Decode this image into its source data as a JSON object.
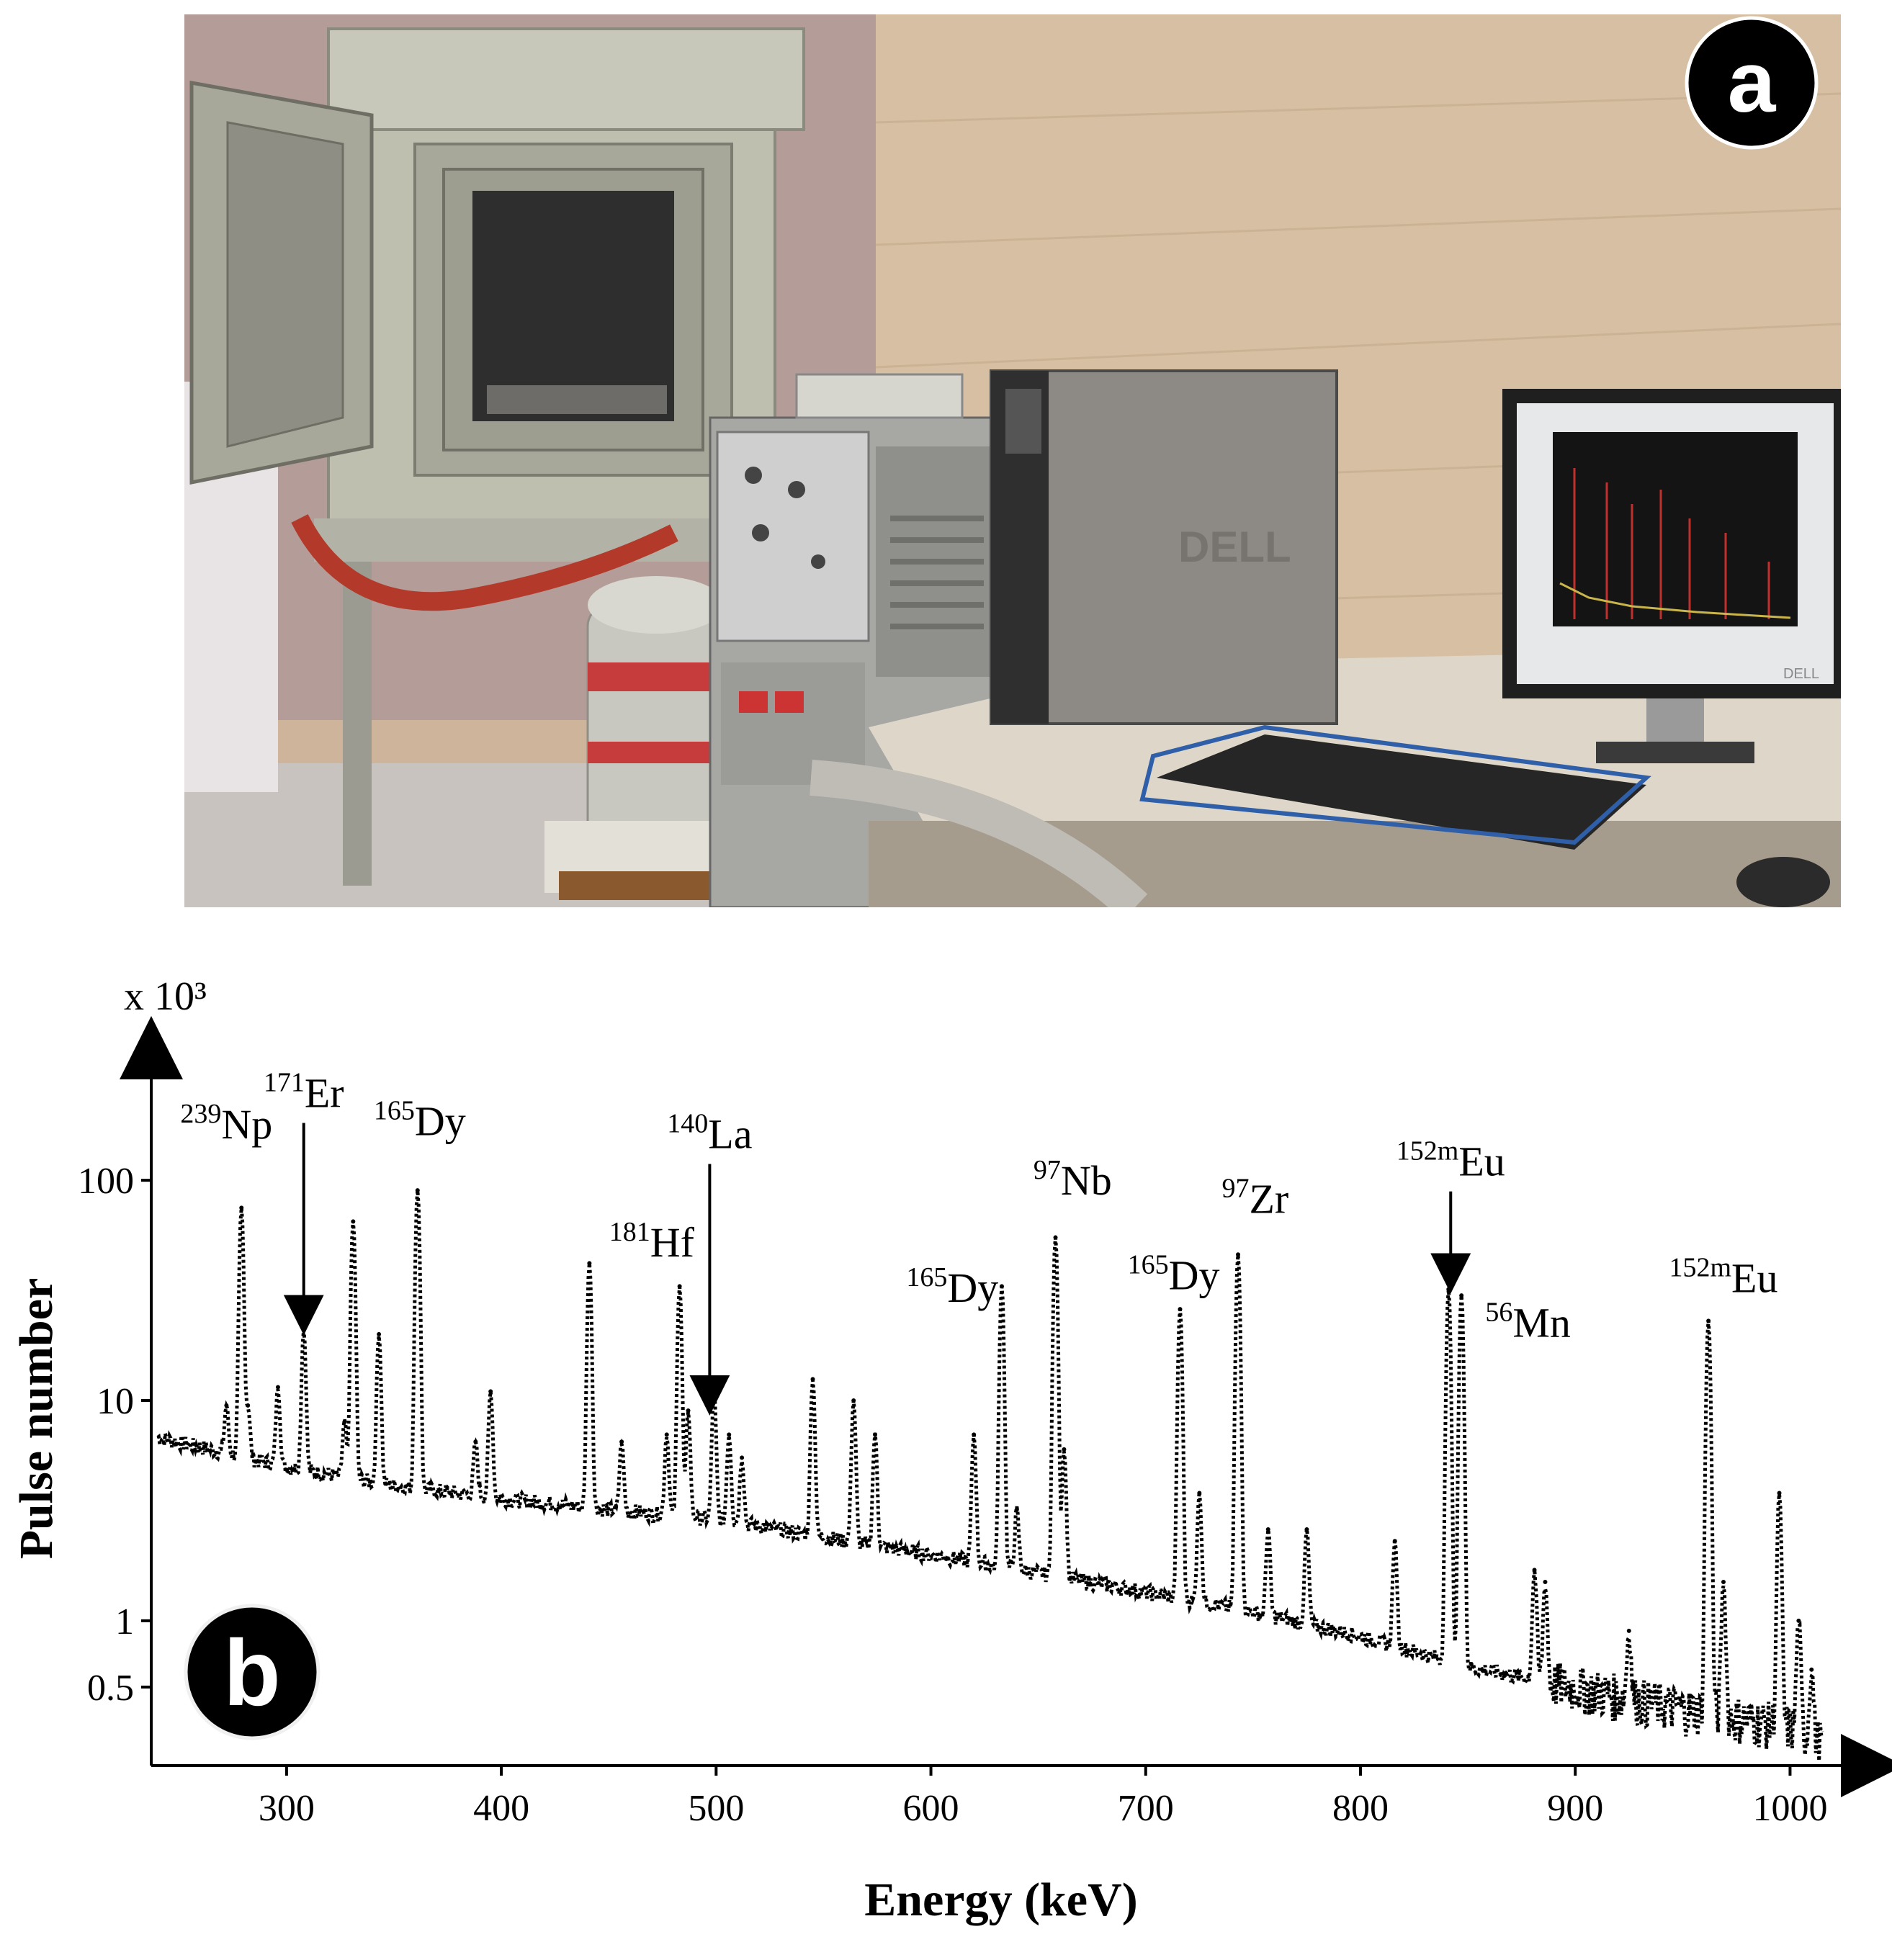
{
  "panel_a": {
    "badge": "a",
    "monitor_brand": "DELL",
    "computer_brand": "DELL"
  },
  "panel_b": {
    "badge": "b"
  },
  "chart_data": {
    "type": "line",
    "scale_note": "x 10³",
    "xlabel": "Energy (keV)",
    "ylabel": "Pulse number",
    "x_ticks": [
      300,
      400,
      500,
      600,
      700,
      800,
      900,
      1000
    ],
    "y_ticks": [
      {
        "value": 100,
        "label": "100"
      },
      {
        "value": 10,
        "label": "10"
      },
      {
        "value": 1,
        "label": "1"
      },
      {
        "value": 0.5,
        "label": "0.5"
      }
    ],
    "xlim": [
      237,
      1025
    ],
    "ylim": [
      0.22,
      400
    ],
    "y_scale": "log",
    "baseline": [
      [
        240,
        6.8
      ],
      [
        300,
        5.0
      ],
      [
        350,
        4.1
      ],
      [
        400,
        3.6
      ],
      [
        450,
        3.2
      ],
      [
        500,
        2.9
      ],
      [
        550,
        2.4
      ],
      [
        600,
        2.0
      ],
      [
        650,
        1.65
      ],
      [
        700,
        1.35
      ],
      [
        750,
        1.1
      ],
      [
        800,
        0.85
      ],
      [
        850,
        0.62
      ],
      [
        900,
        0.5
      ],
      [
        950,
        0.4
      ],
      [
        1000,
        0.33
      ],
      [
        1015,
        0.28
      ]
    ],
    "peaks": [
      {
        "x": 272,
        "y": 9.5
      },
      {
        "x": 279,
        "y": 75
      },
      {
        "x": 282,
        "y": 9.5
      },
      {
        "x": 296,
        "y": 11.5
      },
      {
        "x": 308,
        "y": 21
      },
      {
        "x": 327,
        "y": 8
      },
      {
        "x": 331,
        "y": 65
      },
      {
        "x": 343,
        "y": 20
      },
      {
        "x": 361,
        "y": 90
      },
      {
        "x": 388,
        "y": 6.5
      },
      {
        "x": 395,
        "y": 11
      },
      {
        "x": 441,
        "y": 42
      },
      {
        "x": 456,
        "y": 6.5
      },
      {
        "x": 477,
        "y": 7
      },
      {
        "x": 483,
        "y": 33
      },
      {
        "x": 487,
        "y": 9
      },
      {
        "x": 499,
        "y": 11
      },
      {
        "x": 506,
        "y": 7
      },
      {
        "x": 512,
        "y": 5.5
      },
      {
        "x": 545,
        "y": 12.5
      },
      {
        "x": 564,
        "y": 10
      },
      {
        "x": 574,
        "y": 7
      },
      {
        "x": 620,
        "y": 7
      },
      {
        "x": 633,
        "y": 33
      },
      {
        "x": 640,
        "y": 3.2
      },
      {
        "x": 658,
        "y": 55
      },
      {
        "x": 662,
        "y": 6
      },
      {
        "x": 716,
        "y": 26
      },
      {
        "x": 725,
        "y": 3.8
      },
      {
        "x": 743,
        "y": 46
      },
      {
        "x": 757,
        "y": 2.6
      },
      {
        "x": 775,
        "y": 2.6
      },
      {
        "x": 816,
        "y": 2.3
      },
      {
        "x": 841,
        "y": 32
      },
      {
        "x": 847,
        "y": 30
      },
      {
        "x": 881,
        "y": 1.7
      },
      {
        "x": 886,
        "y": 1.5
      },
      {
        "x": 925,
        "y": 0.9
      },
      {
        "x": 962,
        "y": 23
      },
      {
        "x": 969,
        "y": 1.5
      },
      {
        "x": 995,
        "y": 3.8
      },
      {
        "x": 1004,
        "y": 1.0
      },
      {
        "x": 1010,
        "y": 0.6
      }
    ],
    "annotations": [
      {
        "sup": "239",
        "name": "Np",
        "x": 272,
        "y": 155,
        "arrow": false
      },
      {
        "sup": "171",
        "name": "Er",
        "x": 308,
        "y": 215,
        "arrow": true,
        "arrow_to": 22
      },
      {
        "sup": "165",
        "name": "Dy",
        "x": 362,
        "y": 160,
        "arrow": false
      },
      {
        "sup": "181",
        "name": "Hf",
        "x": 470,
        "y": 45,
        "arrow": false
      },
      {
        "sup": "140",
        "name": "La",
        "x": 497,
        "y": 140,
        "arrow": true,
        "arrow_to": 9.5
      },
      {
        "sup": "165",
        "name": "Dy",
        "x": 610,
        "y": 28,
        "arrow": false
      },
      {
        "sup": "97",
        "name": "Nb",
        "x": 666,
        "y": 86,
        "arrow": false
      },
      {
        "sup": "165",
        "name": "Dy",
        "x": 713,
        "y": 32,
        "arrow": false
      },
      {
        "sup": "97",
        "name": "Zr",
        "x": 751,
        "y": 71,
        "arrow": false
      },
      {
        "sup": "152m",
        "name": "Eu",
        "x": 842,
        "y": 105,
        "arrow": true,
        "arrow_to": 34
      },
      {
        "sup": "56",
        "name": "Mn",
        "x": 878,
        "y": 19.5,
        "arrow": false
      },
      {
        "sup": "152m",
        "name": "Eu",
        "x": 969,
        "y": 31,
        "arrow": false
      }
    ]
  }
}
